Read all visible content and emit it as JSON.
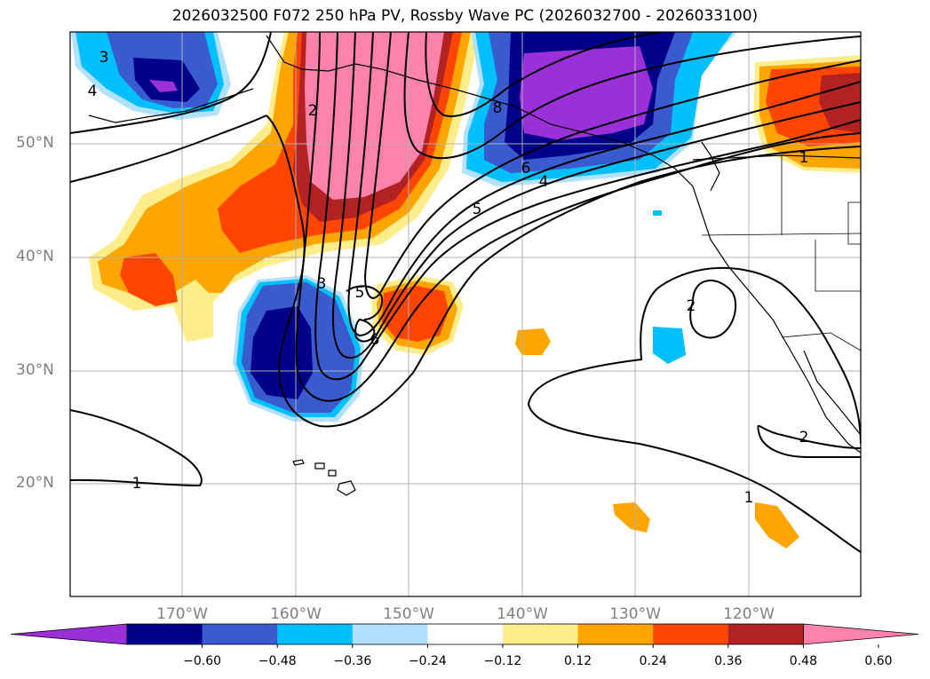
{
  "title": "2026032500 F072 250 hPa PV, Rossby Wave PC (2026032700 - 2026033100)",
  "lat_labels": [
    "50°N",
    "40°N",
    "30°N",
    "20°N"
  ],
  "lon_labels": [
    "170°W",
    "160°W",
    "150°W",
    "140°W",
    "130°W",
    "120°W"
  ],
  "contour_labels": [
    "3",
    "4",
    "2",
    "8",
    "6",
    "4",
    "5",
    "1",
    "3",
    "5",
    "6",
    "2",
    "2",
    "1",
    "1"
  ],
  "colorbar": {
    "ticks": [
      "−0.60",
      "−0.48",
      "−0.36",
      "−0.24",
      "−0.12",
      "0.12",
      "0.24",
      "0.36",
      "0.48",
      "0.60"
    ],
    "colors": [
      "#9b30d9",
      "#00008b",
      "#3a5bd0",
      "#00bfff",
      "#b0e2ff",
      "#ffffff",
      "#ffec8b",
      "#ffa500",
      "#ff4500",
      "#b22222",
      "#ff82ab"
    ]
  }
}
